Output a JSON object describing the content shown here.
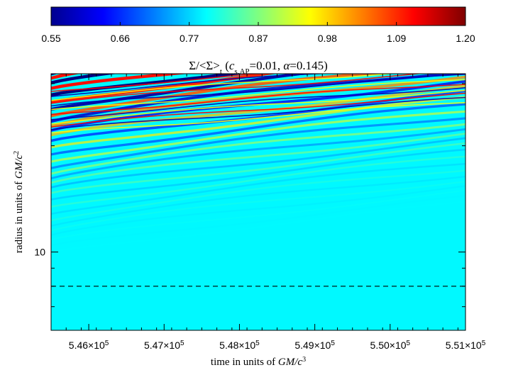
{
  "chart_data": {
    "type": "heatmap",
    "title_parts": {
      "symbol": "Σ/<Σ>",
      "sub": "t",
      "open": " (",
      "cs": "c",
      "cs_sub": "s,AP",
      "cs_val": "=0.01, ",
      "alpha": "α",
      "alpha_val": "=0.145)"
    },
    "xlabel_parts": {
      "text": "time in units of ",
      "gm": "GM/c",
      "exp": "3"
    },
    "ylabel_parts": {
      "text": "radius in units of ",
      "gm": "GM/c",
      "exp": "2"
    },
    "colorbar": {
      "min": 0.55,
      "max": 1.2,
      "tick_labels": [
        "0.55",
        "0.66",
        "0.77",
        "0.87",
        "0.98",
        "1.09",
        "1.20"
      ],
      "colormap": "jet"
    },
    "x_ticks": [
      {
        "value": 546000,
        "mant": "5.46×10",
        "exp": "5"
      },
      {
        "value": 547000,
        "mant": "5.47×10",
        "exp": "5"
      },
      {
        "value": 548000,
        "mant": "5.48×10",
        "exp": "5"
      },
      {
        "value": 549000,
        "mant": "5.49×10",
        "exp": "5"
      },
      {
        "value": 550000,
        "mant": "5.50×10",
        "exp": "5"
      },
      {
        "value": 551000,
        "mant": "5.51×10",
        "exp": "5"
      }
    ],
    "y_ticks": [
      {
        "value": 10,
        "label": "10"
      }
    ],
    "xlim": [
      545500,
      551000
    ],
    "ylim_log": [
      6.0,
      32.0
    ],
    "dashed_line_radius": 8.0,
    "background_value": 0.79,
    "field_description": "Outward-propagating density waves in upper region, amplitude growing with radius"
  }
}
